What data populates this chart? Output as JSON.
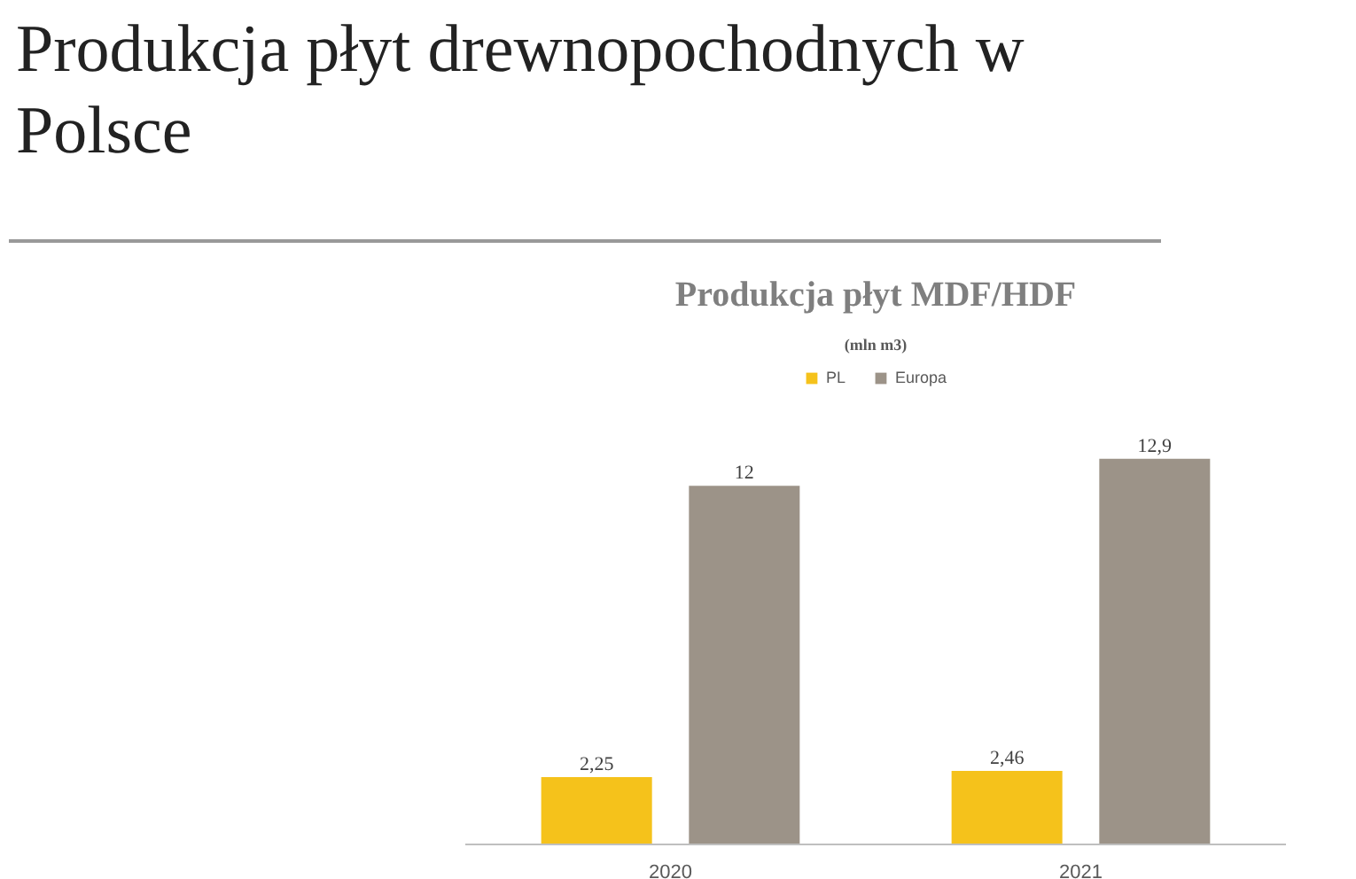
{
  "chart_data": {
    "type": "bar",
    "title": "Produkcja płyt drewnopochodnych w Polsce",
    "subtitle": "Produkcja płyt MDF/HDF",
    "annotations": [
      "(mln m3)"
    ],
    "categories": [
      "2020",
      "2021"
    ],
    "legend": "top",
    "series": [
      {
        "name": "PL",
        "color": "#f5c21b",
        "values": [
          2.25,
          2.46
        ],
        "value_labels": [
          "2,25",
          "2,46"
        ]
      },
      {
        "name": "Europa",
        "color": "#9c9388",
        "values": [
          12,
          12.9
        ],
        "value_labels": [
          "12",
          "12,9"
        ]
      }
    ]
  }
}
